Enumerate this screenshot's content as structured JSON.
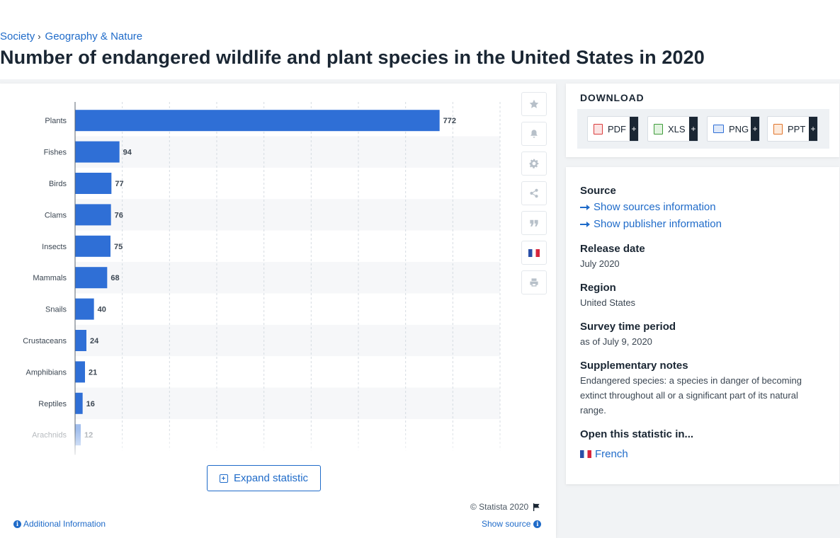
{
  "breadcrumb": {
    "items": [
      "Society",
      "Geography & Nature"
    ],
    "separator": "›"
  },
  "page": {
    "title": "Number of endangered wildlife and plant species in the United States in 2020"
  },
  "chart_data": {
    "type": "bar",
    "orientation": "horizontal",
    "categories": [
      "Plants",
      "Fishes",
      "Birds",
      "Clams",
      "Insects",
      "Mammals",
      "Snails",
      "Crustaceans",
      "Amphibians",
      "Reptiles",
      "Arachnids"
    ],
    "values": [
      772,
      94,
      77,
      76,
      75,
      68,
      40,
      24,
      21,
      16,
      12
    ],
    "xlim": [
      0,
      900
    ],
    "grid": true,
    "bar_color": "#2f6fd6",
    "data_labels": true
  },
  "toolbar": {
    "icons": [
      "star-icon",
      "bell-icon",
      "gear-icon",
      "share-icon",
      "quote-icon",
      "french-flag-icon",
      "print-icon"
    ]
  },
  "actions": {
    "expand_label": "Expand statistic",
    "copyright": "© Statista 2020",
    "additional_info": "Additional Information",
    "show_source": "Show source"
  },
  "download": {
    "title": "DOWNLOAD",
    "buttons": [
      {
        "label": "PDF",
        "color": "#d93b3b"
      },
      {
        "label": "XLS",
        "color": "#3e9b3a"
      },
      {
        "label": "PNG",
        "color": "#2f6fd6"
      },
      {
        "label": "PPT",
        "color": "#e0742b"
      }
    ],
    "plus": "+"
  },
  "info": {
    "source_heading": "Source",
    "show_sources": "Show sources information",
    "show_publisher": "Show publisher information",
    "release_heading": "Release date",
    "release_value": "July 2020",
    "region_heading": "Region",
    "region_value": "United States",
    "survey_heading": "Survey time period",
    "survey_value": "as of July 9, 2020",
    "notes_heading": "Supplementary notes",
    "notes_value": "Endangered species: a species in danger of becoming extinct throughout all or a significant part of its natural range.",
    "open_heading": "Open this statistic in...",
    "open_language": "French"
  }
}
